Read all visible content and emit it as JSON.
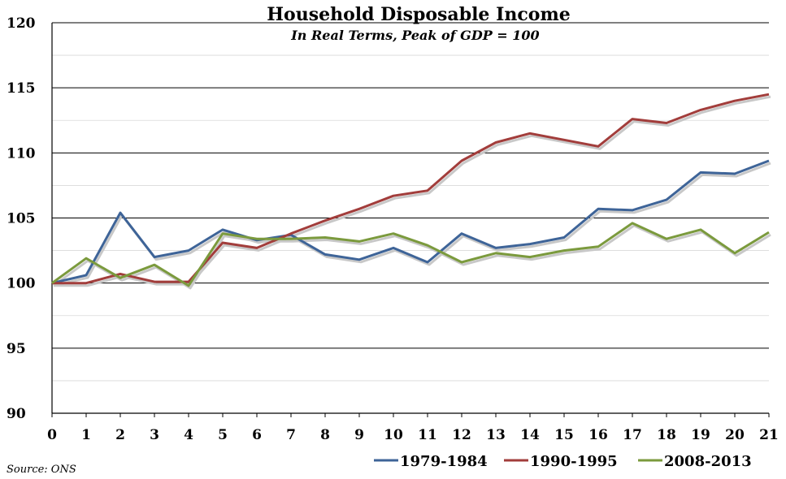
{
  "chart_data": {
    "type": "line",
    "title": "Household Disposable Income",
    "subtitle": "In Real Terms, Peak of GDP = 100",
    "source": "Source: ONS",
    "x": [
      0,
      1,
      2,
      3,
      4,
      5,
      6,
      7,
      8,
      9,
      10,
      11,
      12,
      13,
      14,
      15,
      16,
      17,
      18,
      19,
      20,
      21
    ],
    "xlim": [
      0,
      21
    ],
    "ylim": [
      90,
      120
    ],
    "yticks": [
      90,
      95,
      100,
      105,
      110,
      115,
      120
    ],
    "grid": true,
    "legend_position": "bottom-right",
    "series": [
      {
        "name": "1979-1984",
        "color": "#3e6498",
        "values": [
          100,
          100.6,
          105.4,
          102.0,
          102.5,
          104.1,
          103.3,
          103.7,
          102.2,
          101.8,
          102.7,
          101.6,
          103.8,
          102.7,
          103.0,
          103.5,
          105.7,
          105.6,
          106.4,
          108.5,
          108.4,
          109.4
        ]
      },
      {
        "name": "1990-1995",
        "color": "#a23d3b",
        "values": [
          100,
          100,
          100.7,
          100.1,
          100.1,
          103.1,
          102.7,
          103.8,
          104.8,
          105.7,
          106.7,
          107.1,
          109.4,
          110.8,
          111.5,
          111.0,
          110.5,
          112.6,
          112.3,
          113.3,
          114.0,
          114.5
        ]
      },
      {
        "name": "2008-2013",
        "color": "#7b9a3d",
        "values": [
          100,
          101.9,
          100.4,
          101.4,
          99.8,
          103.8,
          103.4,
          103.4,
          103.5,
          103.2,
          103.8,
          102.9,
          101.6,
          102.3,
          102.0,
          102.5,
          102.8,
          104.6,
          103.4,
          104.1,
          102.3,
          103.9
        ]
      }
    ]
  }
}
